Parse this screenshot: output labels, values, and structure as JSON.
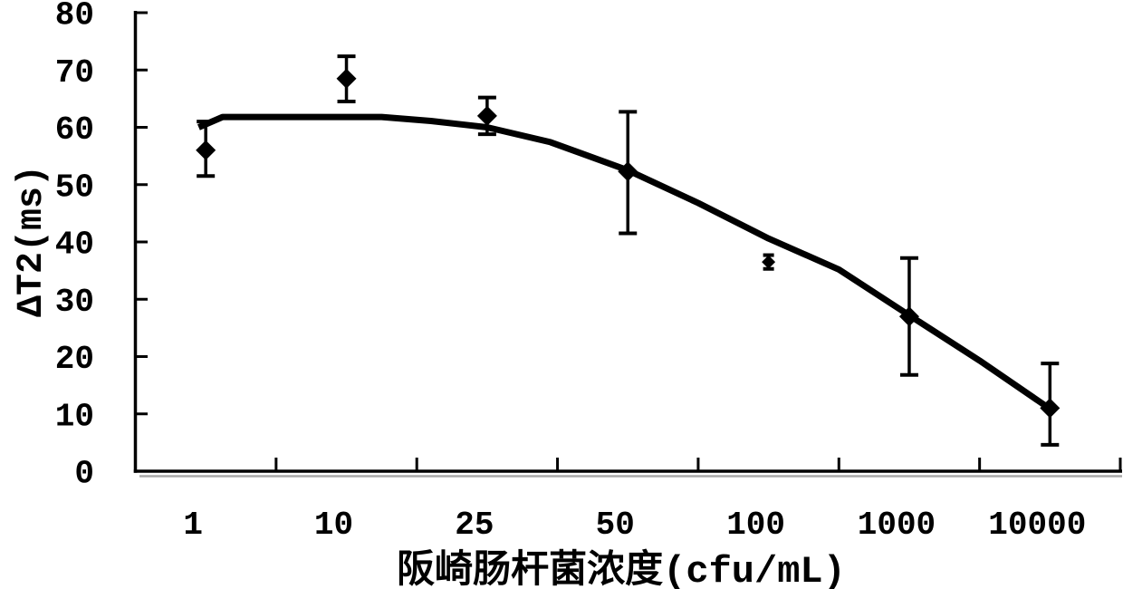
{
  "chart_data": {
    "type": "scatter",
    "title": "",
    "xlabel": "阪崎肠杆菌浓度(cfu/mL)",
    "ylabel": "ΔT2(ms)",
    "x_categories": [
      "1",
      "10",
      "25",
      "50",
      "100",
      "1000",
      "10000"
    ],
    "y_ticks": [
      0,
      10,
      20,
      30,
      40,
      50,
      60,
      70,
      80
    ],
    "ylim": [
      0,
      80
    ],
    "grid": false,
    "legend": "none",
    "axis_color": "#000000",
    "axis_shadow_color": "#a8a8a8",
    "background_color": "#ffffff",
    "series": [
      {
        "name": "measured points",
        "type": "scatter",
        "marker": "diamond",
        "color": "#000000",
        "values": [
          56,
          68.5,
          62,
          52.3,
          36.5,
          27,
          11
        ],
        "error_plus": [
          5,
          3.9,
          3.2,
          10.4,
          1.2,
          10.2,
          7.8
        ],
        "error_minus": [
          4.5,
          4,
          3.2,
          10.8,
          1.2,
          10.2,
          6.4
        ],
        "marker_sizes": [
          11,
          11,
          11,
          11,
          7.5,
          11,
          11
        ]
      },
      {
        "name": "trend curve",
        "type": "line",
        "color": "#000000",
        "stroke_width": 7,
        "points": [
          [
            -0.05,
            60.0
          ],
          [
            0.12,
            61.8
          ],
          [
            1.25,
            61.8
          ],
          [
            1.6,
            61.1
          ],
          [
            2.0,
            60.0
          ],
          [
            2.45,
            57.4
          ],
          [
            3.0,
            52.5
          ],
          [
            3.5,
            46.8
          ],
          [
            4.0,
            40.6
          ],
          [
            4.5,
            35.2
          ],
          [
            5.0,
            27.2
          ],
          [
            5.5,
            19.3
          ],
          [
            6.0,
            10.9
          ]
        ]
      }
    ]
  }
}
